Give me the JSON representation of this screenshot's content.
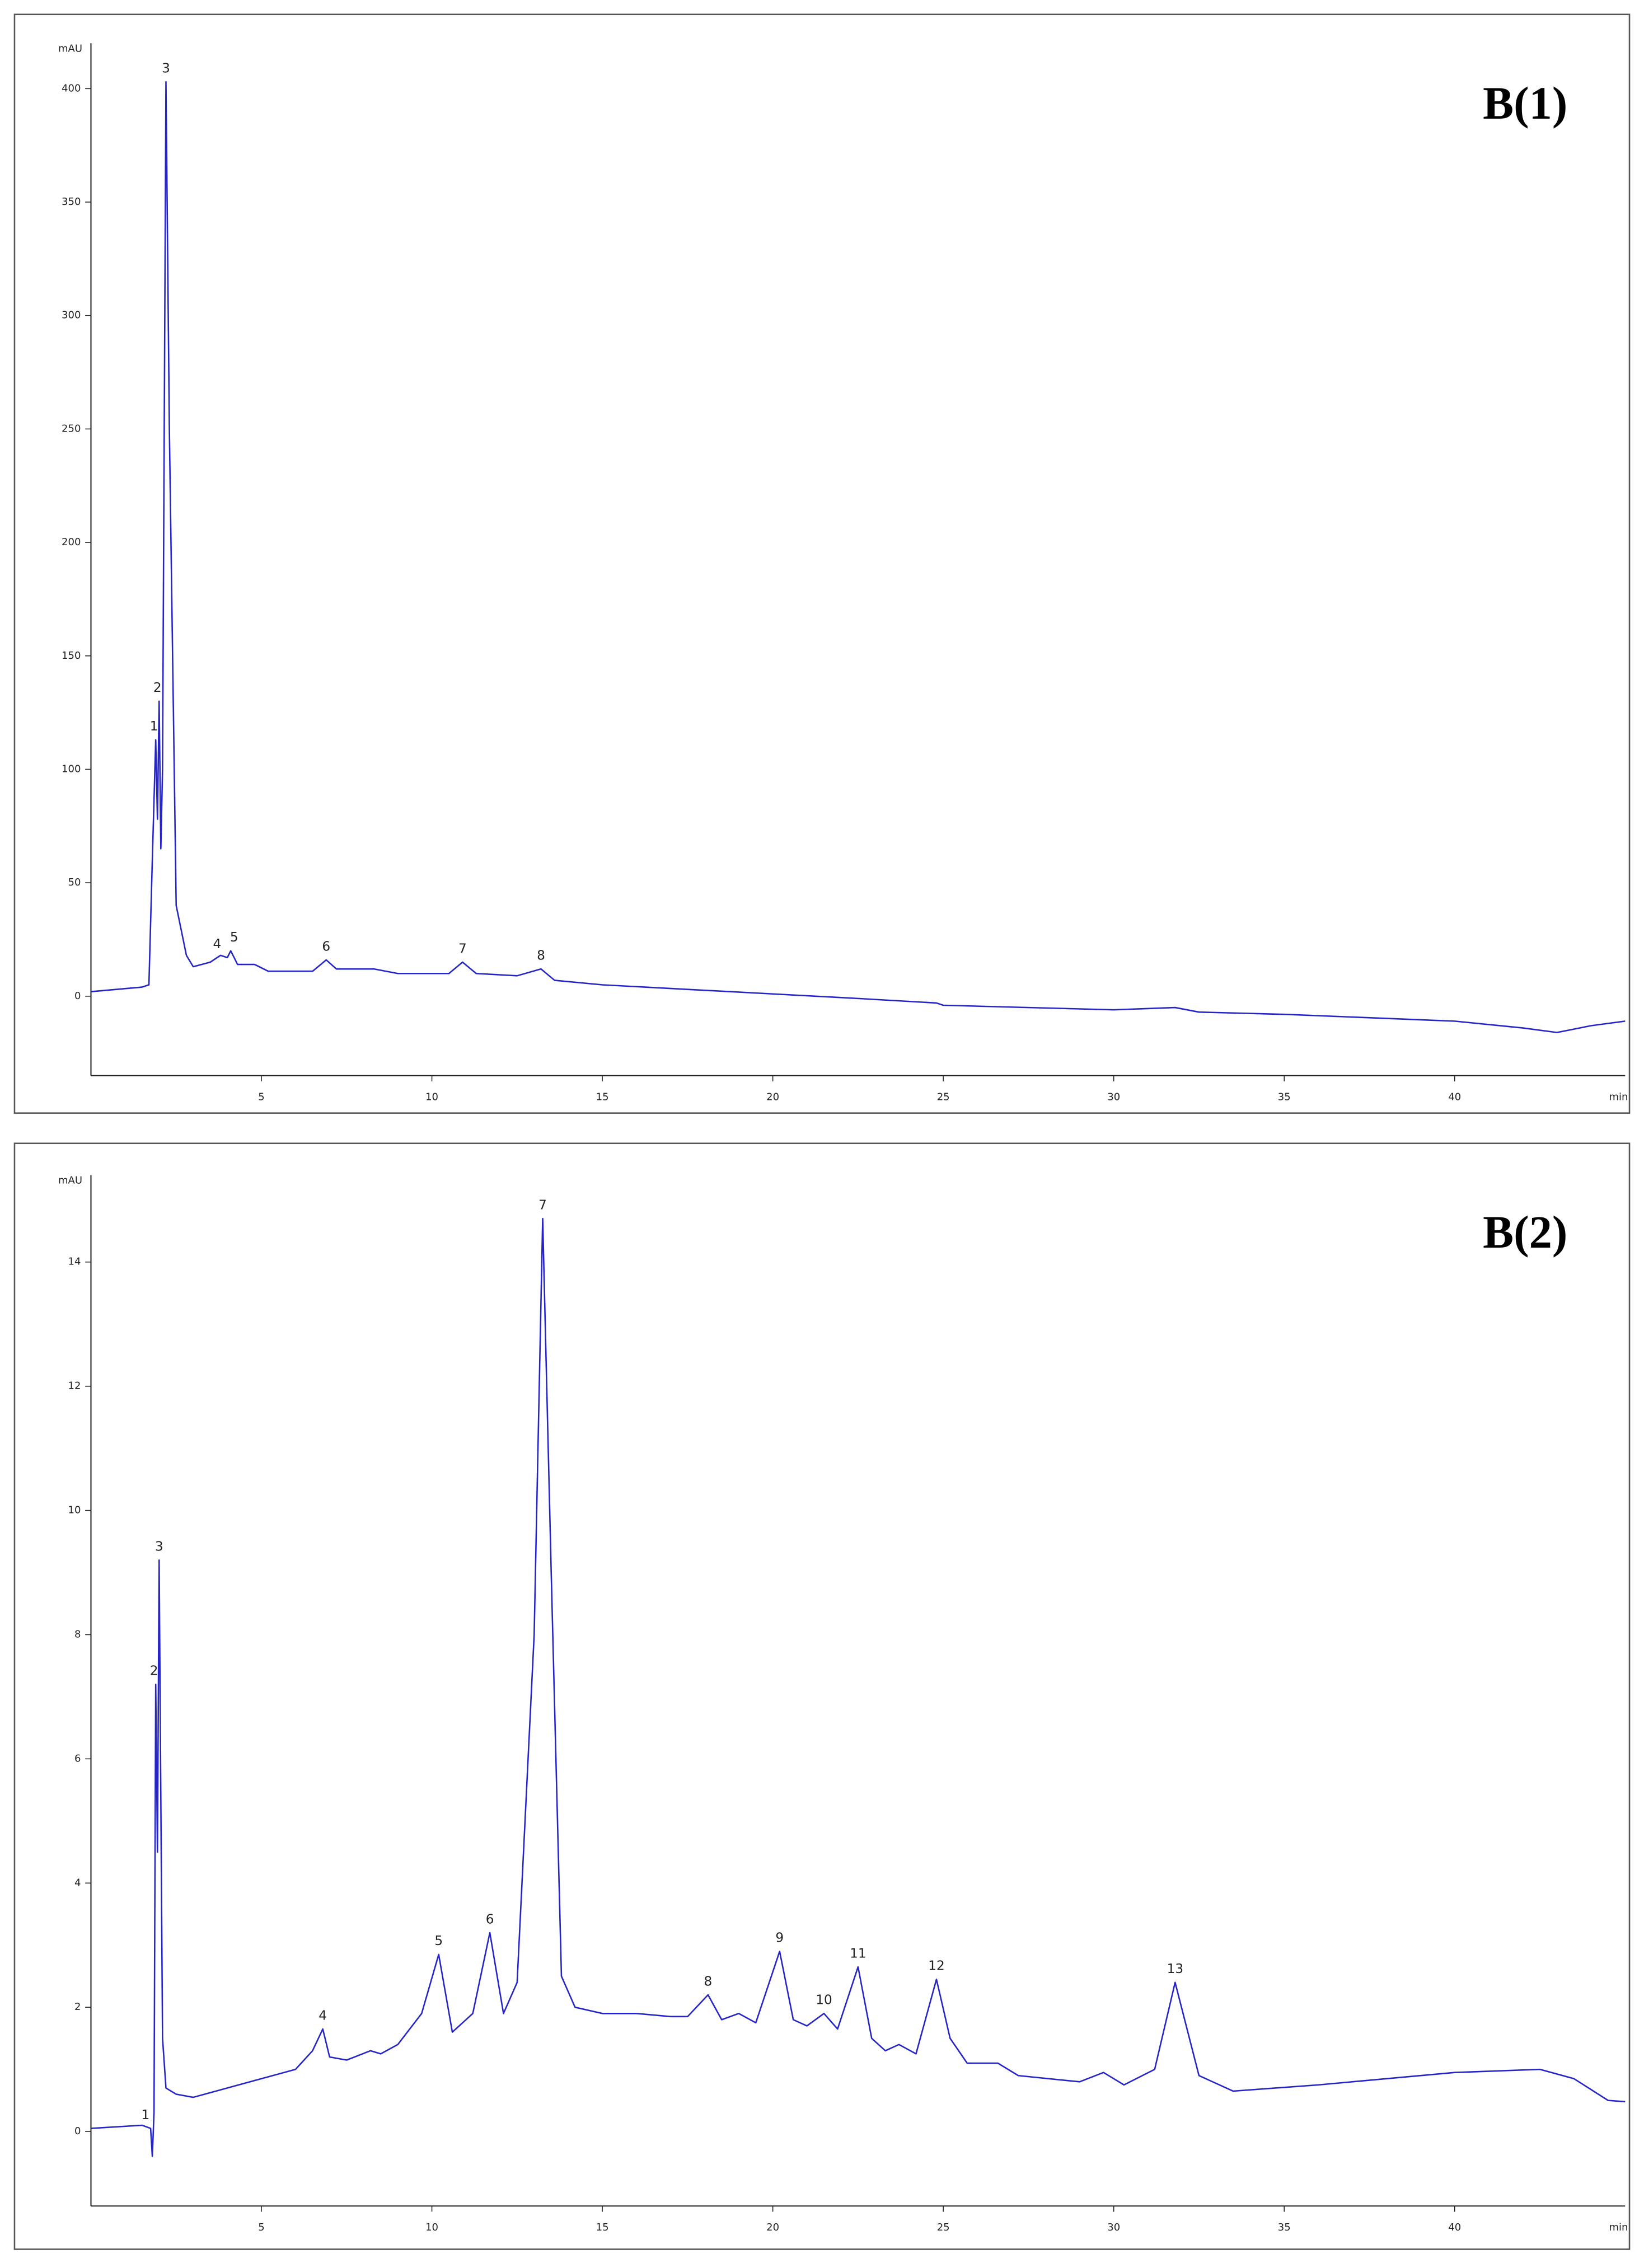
{
  "chart_data": [
    {
      "type": "line",
      "panel_label": "B(1)",
      "y_label": "mAU",
      "x_label": "min",
      "color": "#2424c8",
      "xlim": [
        0,
        45
      ],
      "xticks": [
        5,
        10,
        15,
        20,
        25,
        30,
        35,
        40
      ],
      "ylim": [
        -35,
        420
      ],
      "yticks": [
        0,
        50,
        100,
        150,
        200,
        250,
        300,
        350,
        400
      ],
      "x": [
        0,
        1.5,
        1.7,
        1.8,
        1.9,
        1.95,
        2.0,
        2.05,
        2.1,
        2.2,
        2.3,
        2.5,
        2.8,
        3.0,
        3.5,
        3.8,
        4.0,
        4.1,
        4.3,
        4.8,
        5.2,
        6.5,
        6.9,
        7.2,
        8.3,
        9,
        10.5,
        10.9,
        11.3,
        12.5,
        13.2,
        13.6,
        15,
        20,
        22.5,
        24.8,
        25,
        30,
        31.8,
        32.5,
        35,
        40,
        42,
        43,
        44,
        45
      ],
      "values": [
        2,
        4,
        5,
        60,
        113,
        78,
        130,
        65,
        100,
        403,
        250,
        40,
        18,
        13,
        15,
        18,
        17,
        20,
        14,
        14,
        11,
        11,
        16,
        12,
        12,
        10,
        10,
        15,
        10,
        9,
        12,
        7,
        5,
        1,
        -1,
        -3,
        -4,
        -6,
        -5,
        -7,
        -8,
        -11,
        -14,
        -16,
        -13,
        -11
      ],
      "annotations": [
        {
          "text": "1",
          "x": 1.85,
          "y": 113
        },
        {
          "text": "2",
          "x": 1.95,
          "y": 130
        },
        {
          "text": "3",
          "x": 2.2,
          "y": 403
        },
        {
          "text": "4",
          "x": 3.7,
          "y": 17
        },
        {
          "text": "5",
          "x": 4.2,
          "y": 20
        },
        {
          "text": "6",
          "x": 6.9,
          "y": 16
        },
        {
          "text": "7",
          "x": 10.9,
          "y": 15
        },
        {
          "text": "8",
          "x": 13.2,
          "y": 12
        }
      ]
    },
    {
      "type": "line",
      "panel_label": "B(2)",
      "y_label": "mAU",
      "x_label": "min",
      "color": "#2424c8",
      "xlim": [
        0,
        45
      ],
      "xticks": [
        5,
        10,
        15,
        20,
        25,
        30,
        35,
        40
      ],
      "ylim": [
        -1.2,
        15.4
      ],
      "yticks": [
        0,
        2,
        4,
        6,
        8,
        10,
        12,
        14
      ],
      "x": [
        0,
        1.5,
        1.75,
        1.8,
        1.85,
        1.9,
        1.95,
        2.0,
        2.1,
        2.2,
        2.5,
        3,
        4,
        5,
        6,
        6.5,
        6.8,
        7.0,
        7.5,
        8.2,
        8.5,
        9,
        9.7,
        10.2,
        10.6,
        11.2,
        11.7,
        12.1,
        12.5,
        13.0,
        13.25,
        13.5,
        13.8,
        14.2,
        15,
        16,
        17,
        17.5,
        18.1,
        18.5,
        19,
        19.5,
        20.2,
        20.6,
        21,
        21.5,
        21.9,
        22.5,
        22.9,
        23.3,
        23.7,
        24.2,
        24.8,
        25.2,
        25.7,
        26.6,
        27.2,
        29,
        29.7,
        30.3,
        31.2,
        31.8,
        32.5,
        33.5,
        36,
        40,
        42.5,
        43.5,
        44.5,
        45
      ],
      "values": [
        0.05,
        0.1,
        0.05,
        -0.4,
        0.3,
        7.2,
        4.5,
        9.2,
        1.5,
        0.7,
        0.6,
        0.55,
        0.7,
        0.85,
        1.0,
        1.3,
        1.65,
        1.2,
        1.15,
        1.3,
        1.25,
        1.4,
        1.9,
        2.85,
        1.6,
        1.9,
        3.2,
        1.9,
        2.4,
        8,
        14.7,
        9,
        2.5,
        2.0,
        1.9,
        1.9,
        1.85,
        1.85,
        2.2,
        1.8,
        1.9,
        1.75,
        2.9,
        1.8,
        1.7,
        1.9,
        1.65,
        2.65,
        1.5,
        1.3,
        1.4,
        1.25,
        2.45,
        1.5,
        1.1,
        1.1,
        0.9,
        0.8,
        0.95,
        0.75,
        1.0,
        2.4,
        0.9,
        0.65,
        0.75,
        0.95,
        1.0,
        0.85,
        0.5,
        0.48
      ],
      "annotations": [
        {
          "text": "1",
          "x": 1.6,
          "y": 0.05
        },
        {
          "text": "2",
          "x": 1.85,
          "y": 7.2
        },
        {
          "text": "3",
          "x": 2.0,
          "y": 9.2
        },
        {
          "text": "4",
          "x": 6.8,
          "y": 1.65
        },
        {
          "text": "5",
          "x": 10.2,
          "y": 2.85
        },
        {
          "text": "6",
          "x": 11.7,
          "y": 3.2
        },
        {
          "text": "7",
          "x": 13.25,
          "y": 14.7
        },
        {
          "text": "8",
          "x": 18.1,
          "y": 2.2
        },
        {
          "text": "9",
          "x": 20.2,
          "y": 2.9
        },
        {
          "text": "10",
          "x": 21.5,
          "y": 1.9
        },
        {
          "text": "11",
          "x": 22.5,
          "y": 2.65
        },
        {
          "text": "12",
          "x": 24.8,
          "y": 2.45
        },
        {
          "text": "13",
          "x": 31.8,
          "y": 2.4
        }
      ]
    }
  ]
}
